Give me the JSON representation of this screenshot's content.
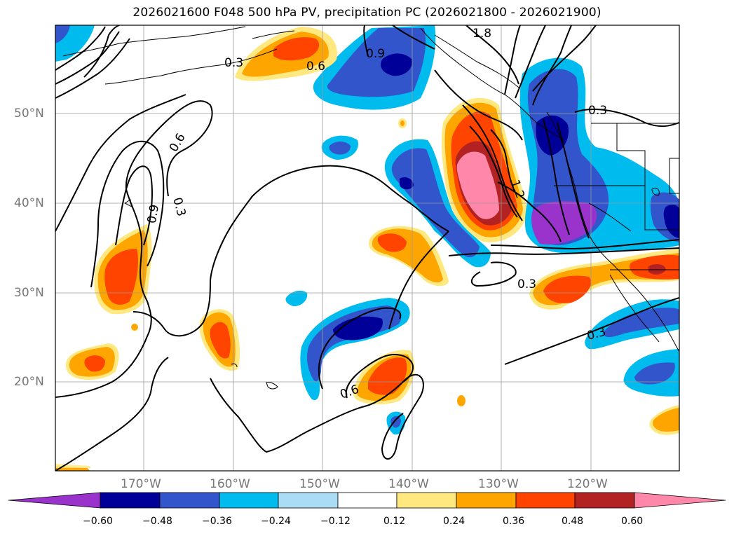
{
  "title": "2026021600 F048 500 hPa PV, precipitation PC (2026021800 - 2026021900)",
  "lat_labels": [
    "50°N",
    "40°N",
    "30°N",
    "20°N"
  ],
  "lon_labels": [
    "170°W",
    "160°W",
    "150°W",
    "140°W",
    "130°W",
    "120°W"
  ],
  "contour_labels": [
    "1.8",
    "0.9",
    "0.6",
    "0.3",
    "0.6",
    "0.3",
    "0.9",
    "0.3",
    "1.2",
    "0.3",
    "0.3",
    "0.6"
  ],
  "colorbar": {
    "ticks": [
      "−0.60",
      "−0.48",
      "−0.36",
      "−0.24",
      "−0.12",
      "0.12",
      "0.24",
      "0.36",
      "0.48",
      "0.60"
    ],
    "colors": {
      "lt_neg060": "#9933cc",
      "neg060_neg048": "#000099",
      "neg048_neg036": "#3355cc",
      "neg036_neg024": "#00bbee",
      "neg024_neg012": "#aaddf5",
      "neutral": "#ffffff",
      "pos012_pos024": "#ffe880",
      "pos024_pos036": "#ffa500",
      "pos036_pos048": "#ff4400",
      "pos048_pos060": "#b22222",
      "gt_pos060": "#ff88aa"
    }
  }
}
